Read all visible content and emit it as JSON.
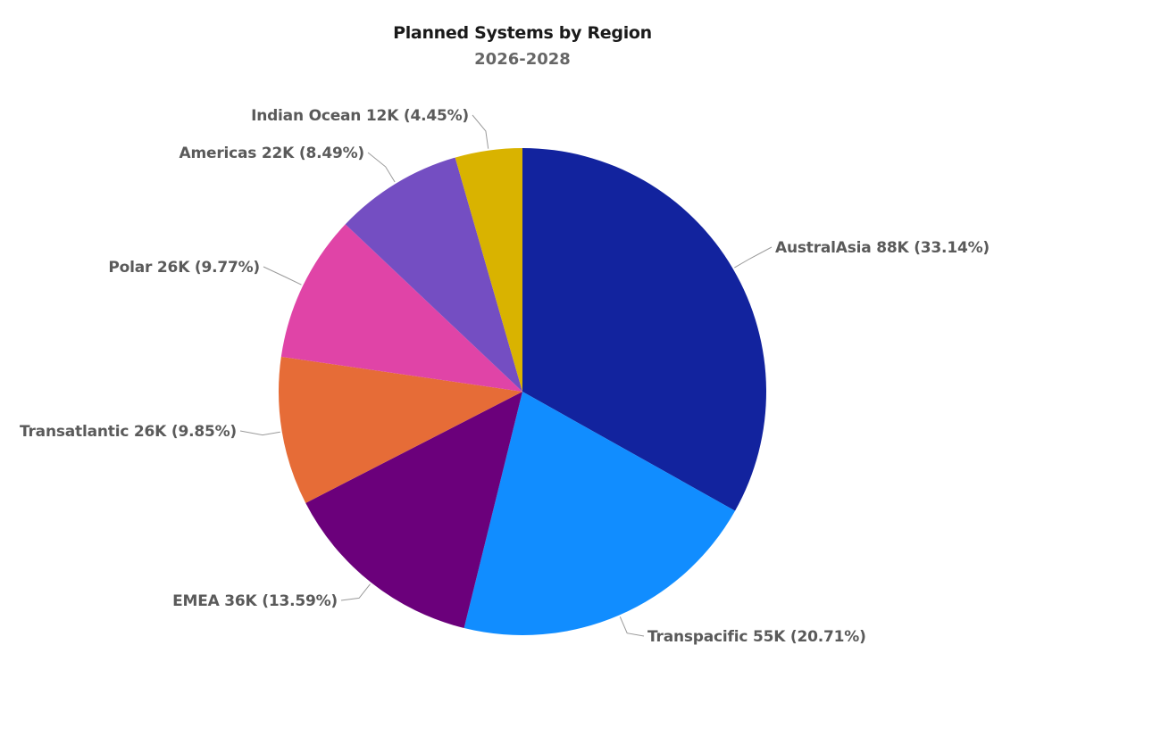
{
  "chart_data": {
    "type": "pie",
    "title": "Planned Systems by Region",
    "subtitle": "2026-2028",
    "start": "top",
    "direction": "clockwise",
    "slices": [
      {
        "name": "AustralAsia",
        "value": 88,
        "value_label": "88K",
        "percent": 33.14,
        "percent_label": "33.14%",
        "label": "AustralAsia 88K (33.14%)",
        "color": "#12239E"
      },
      {
        "name": "Transpacific",
        "value": 55,
        "value_label": "55K",
        "percent": 20.71,
        "percent_label": "20.71%",
        "label": "Transpacific 55K (20.71%)",
        "color": "#118DFF"
      },
      {
        "name": "EMEA",
        "value": 36,
        "value_label": "36K",
        "percent": 13.59,
        "percent_label": "13.59%",
        "label": "EMEA 36K (13.59%)",
        "color": "#6B007B"
      },
      {
        "name": "Transatlantic",
        "value": 26,
        "value_label": "26K",
        "percent": 9.85,
        "percent_label": "9.85%",
        "label": "Transatlantic 26K (9.85%)",
        "color": "#E66C37"
      },
      {
        "name": "Polar",
        "value": 26,
        "value_label": "26K",
        "percent": 9.77,
        "percent_label": "9.77%",
        "label": "Polar 26K (9.77%)",
        "color": "#E044A7"
      },
      {
        "name": "Americas",
        "value": 22,
        "value_label": "22K",
        "percent": 8.49,
        "percent_label": "8.49%",
        "label": "Americas 22K (8.49%)",
        "color": "#744EC2"
      },
      {
        "name": "Indian Ocean",
        "value": 12,
        "value_label": "12K",
        "percent": 4.45,
        "percent_label": "4.45%",
        "label": "Indian Ocean 12K (4.45%)",
        "color": "#D9B300"
      }
    ]
  }
}
